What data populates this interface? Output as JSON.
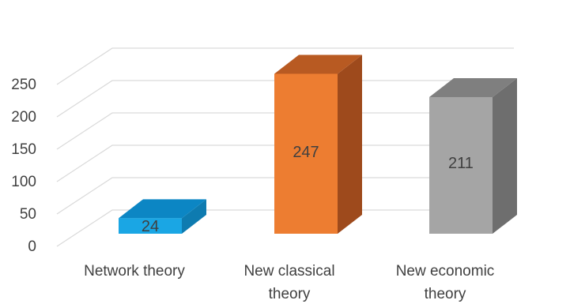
{
  "chart_data": {
    "type": "bar",
    "style": "3d-column",
    "categories": [
      [
        "Network theory"
      ],
      [
        "New classical",
        "theory"
      ],
      [
        "New economic",
        "theory"
      ]
    ],
    "values": [
      24,
      247,
      211
    ],
    "data_labels": [
      "24",
      "247",
      "211"
    ],
    "ylim": [
      0,
      250
    ],
    "yticks": [
      "0",
      "50",
      "100",
      "150",
      "200",
      "250"
    ],
    "grid": true,
    "legend": "none",
    "colors": {
      "front": [
        "#1aa6e4",
        "#ed7d31",
        "#a5a5a5"
      ],
      "side": [
        "#0e7bb0",
        "#9e4a1c",
        "#6e6e6e"
      ],
      "top": [
        "#0c86c4",
        "#b85a22",
        "#7f7f7f"
      ]
    }
  }
}
